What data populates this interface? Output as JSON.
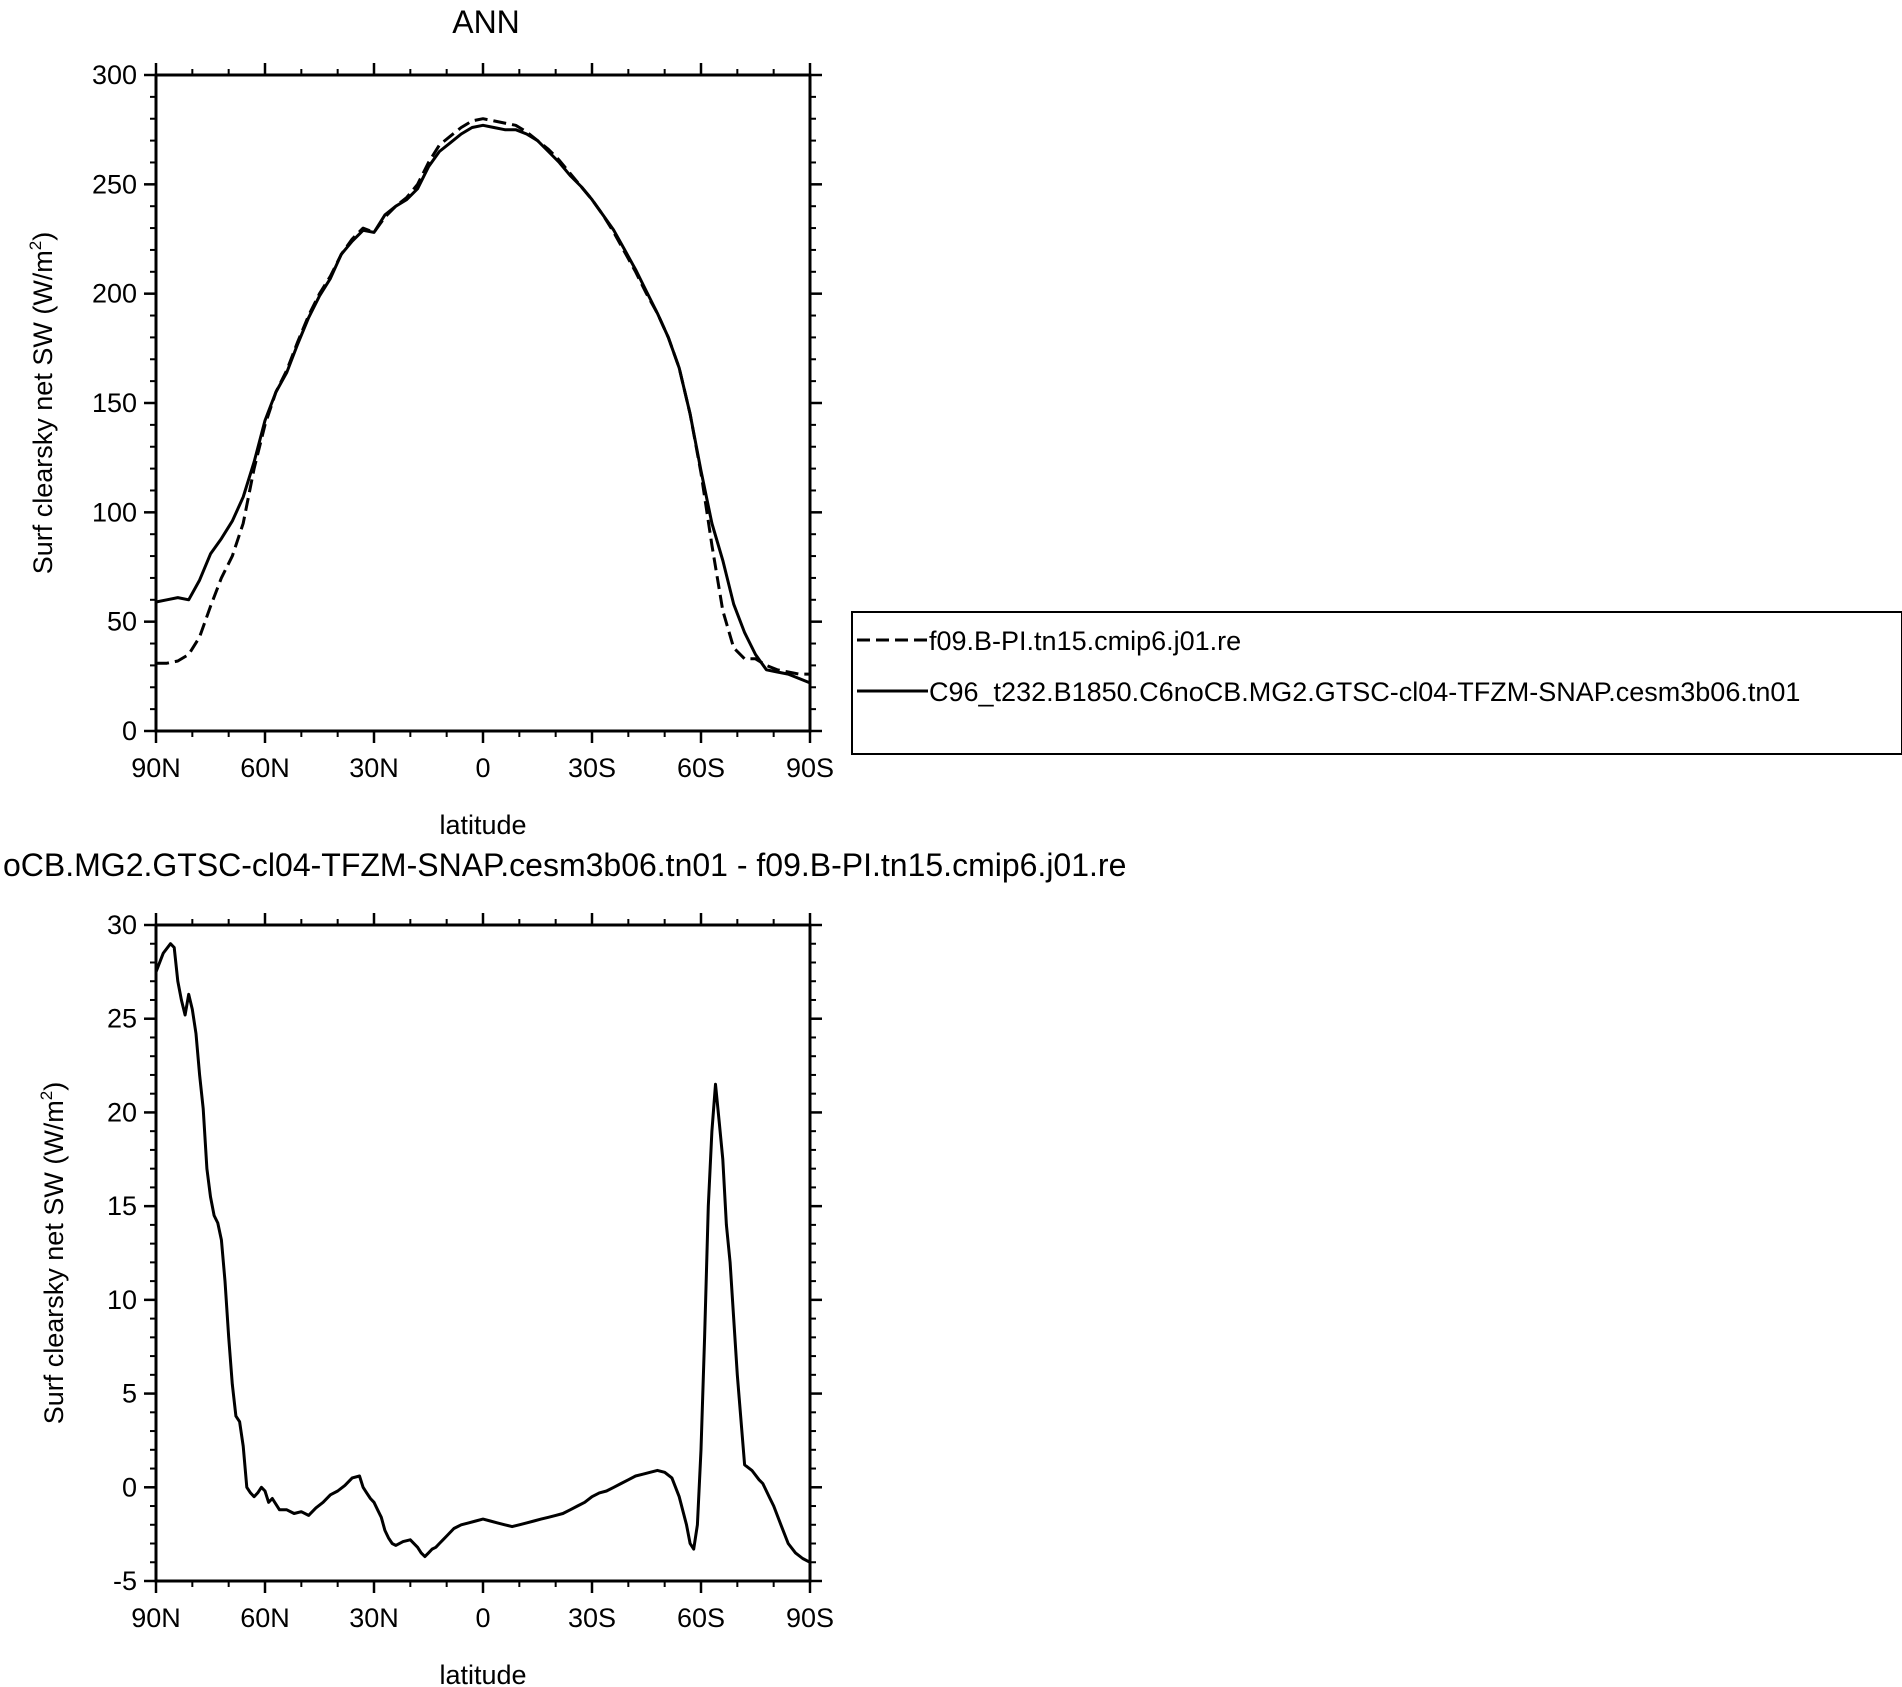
{
  "chart_data": [
    {
      "type": "line",
      "title": "ANN",
      "xlabel": "latitude",
      "ylabel": "Surf clearsky net SW (W/m",
      "ylabel_sup": "2",
      "ylabel_close": ")",
      "x_tick_labels": [
        "90N",
        "60N",
        "30N",
        "0",
        "30S",
        "60S",
        "90S"
      ],
      "y_tick_labels": [
        "0",
        "50",
        "100",
        "150",
        "200",
        "250",
        "300"
      ],
      "xlim": [
        90,
        -90
      ],
      "ylim": [
        0,
        300
      ],
      "grid": false,
      "legend_position": "right",
      "series": [
        {
          "name": "f09.B-PI.tn15.cmip6.j01.re",
          "style": "dashed",
          "color": "#000000",
          "x": [
            90,
            87,
            84,
            81,
            78,
            75,
            72,
            69,
            66,
            63,
            60,
            57,
            54,
            51,
            48,
            45,
            42,
            39,
            36,
            33,
            30,
            27,
            24,
            21,
            18,
            15,
            12,
            9,
            6,
            3,
            0,
            -3,
            -6,
            -9,
            -12,
            -15,
            -18,
            -21,
            -24,
            -27,
            -30,
            -33,
            -36,
            -39,
            -42,
            -45,
            -48,
            -51,
            -54,
            -57,
            -60,
            -63,
            -66,
            -69,
            -72,
            -75,
            -78,
            -81,
            -84,
            -87,
            -90
          ],
          "y": [
            31,
            31,
            32,
            35,
            43,
            57,
            70,
            80,
            95,
            120,
            140,
            155,
            165,
            178,
            190,
            200,
            208,
            218,
            225,
            230,
            228,
            235,
            240,
            244,
            250,
            260,
            268,
            272,
            276,
            279,
            280,
            279,
            278,
            277,
            274,
            270,
            266,
            261,
            255,
            249,
            243,
            236,
            228,
            219,
            210,
            200,
            191,
            180,
            166,
            145,
            118,
            85,
            55,
            38,
            33,
            33,
            30,
            28,
            27,
            26,
            26
          ]
        },
        {
          "name": "C96_t232.B1850.C6noCB.MG2.GTSC-cl04-TFZM-SNAP.cesm3b06.tn01",
          "style": "solid",
          "color": "#000000",
          "x": [
            90,
            87,
            84,
            81,
            78,
            75,
            72,
            69,
            66,
            63,
            60,
            57,
            54,
            51,
            48,
            45,
            42,
            39,
            36,
            33,
            30,
            27,
            24,
            21,
            18,
            15,
            12,
            9,
            6,
            3,
            0,
            -3,
            -6,
            -9,
            -12,
            -15,
            -18,
            -21,
            -24,
            -27,
            -30,
            -33,
            -36,
            -39,
            -42,
            -45,
            -48,
            -51,
            -54,
            -57,
            -60,
            -63,
            -66,
            -69,
            -72,
            -75,
            -78,
            -81,
            -84,
            -87,
            -90
          ],
          "y": [
            59,
            60,
            61,
            60,
            69,
            81,
            88,
            96,
            107,
            123,
            142,
            155,
            164,
            177,
            189,
            199,
            207,
            218,
            224,
            229,
            228,
            236,
            240,
            243,
            248,
            258,
            265,
            269,
            273,
            276,
            277,
            276,
            275,
            275,
            273,
            270,
            265,
            260,
            254,
            249,
            243,
            236,
            229,
            220,
            211,
            201,
            191,
            180,
            166,
            145,
            119,
            95,
            78,
            58,
            45,
            35,
            28,
            27,
            26,
            24,
            22
          ]
        }
      ]
    },
    {
      "type": "line",
      "title": "oCB.MG2.GTSC-cl04-TFZM-SNAP.cesm3b06.tn01 - f09.B-PI.tn15.cmip6.j01.re",
      "xlabel": "latitude",
      "ylabel": "Surf clearsky net SW (W/m",
      "ylabel_sup": "2",
      "ylabel_close": ")",
      "x_tick_labels": [
        "90N",
        "60N",
        "30N",
        "0",
        "30S",
        "60S",
        "90S"
      ],
      "y_tick_labels": [
        "-5",
        "0",
        "5",
        "10",
        "15",
        "20",
        "25",
        "30"
      ],
      "xlim": [
        90,
        -90
      ],
      "ylim": [
        -5,
        30
      ],
      "grid": false,
      "series": [
        {
          "style": "solid",
          "color": "#000000",
          "x": [
            90,
            88,
            86,
            85,
            84,
            83,
            82,
            81,
            80,
            79,
            78,
            77,
            76,
            75,
            74,
            73,
            72,
            71,
            70,
            69,
            68,
            67,
            66,
            65,
            64,
            63,
            62,
            61,
            60,
            59,
            58,
            56,
            54,
            52,
            50,
            48,
            46,
            44,
            42,
            40,
            38,
            36,
            34,
            33,
            32,
            31,
            30,
            29,
            28,
            27,
            26,
            25,
            24,
            22,
            20,
            18,
            17,
            16,
            15,
            14,
            13,
            12,
            11,
            10,
            8,
            6,
            4,
            2,
            0,
            -2,
            -4,
            -6,
            -8,
            -10,
            -12,
            -14,
            -16,
            -18,
            -20,
            -22,
            -24,
            -26,
            -28,
            -30,
            -32,
            -34,
            -36,
            -38,
            -40,
            -42,
            -44,
            -46,
            -48,
            -50,
            -52,
            -54,
            -56,
            -57,
            -58,
            -59,
            -60,
            -61,
            -62,
            -63,
            -64,
            -65,
            -66,
            -67,
            -68,
            -69,
            -70,
            -72,
            -74,
            -76,
            -77,
            -78,
            -79,
            -80,
            -82,
            -84,
            -86,
            -88,
            -90
          ],
          "y": [
            27.5,
            28.5,
            29,
            28.8,
            27,
            26,
            25.2,
            26.3,
            25.5,
            24.2,
            22,
            20.2,
            17,
            15.5,
            14.5,
            14.1,
            13.2,
            11,
            8,
            5.5,
            3.8,
            3.5,
            2.2,
            0,
            -0.3,
            -0.5,
            -0.3,
            0,
            -0.2,
            -0.8,
            -0.6,
            -1.2,
            -1.2,
            -1.4,
            -1.3,
            -1.5,
            -1.1,
            -0.8,
            -0.4,
            -0.2,
            0.1,
            0.5,
            0.6,
            0,
            -0.3,
            -0.6,
            -0.8,
            -1.2,
            -1.6,
            -2.3,
            -2.7,
            -3,
            -3.1,
            -2.9,
            -2.8,
            -3.2,
            -3.5,
            -3.7,
            -3.5,
            -3.3,
            -3.2,
            -3.0,
            -2.8,
            -2.6,
            -2.2,
            -2.0,
            -1.9,
            -1.8,
            -1.7,
            -1.8,
            -1.9,
            -2.0,
            -2.1,
            -2.0,
            -1.9,
            -1.8,
            -1.7,
            -1.6,
            -1.5,
            -1.4,
            -1.2,
            -1.0,
            -0.8,
            -0.5,
            -0.3,
            -0.2,
            0.0,
            0.2,
            0.4,
            0.6,
            0.7,
            0.8,
            0.9,
            0.8,
            0.5,
            -0.5,
            -2.0,
            -3.0,
            -3.3,
            -2.0,
            2.0,
            8.0,
            15.0,
            19.0,
            21.5,
            19.5,
            17.5,
            14.0,
            12.0,
            9.0,
            6.0,
            1.2,
            0.9,
            0.4,
            0.2,
            -0.2,
            -0.6,
            -1.0,
            -2.0,
            -3.0,
            -3.5,
            -3.8,
            -4.0
          ]
        }
      ]
    }
  ]
}
